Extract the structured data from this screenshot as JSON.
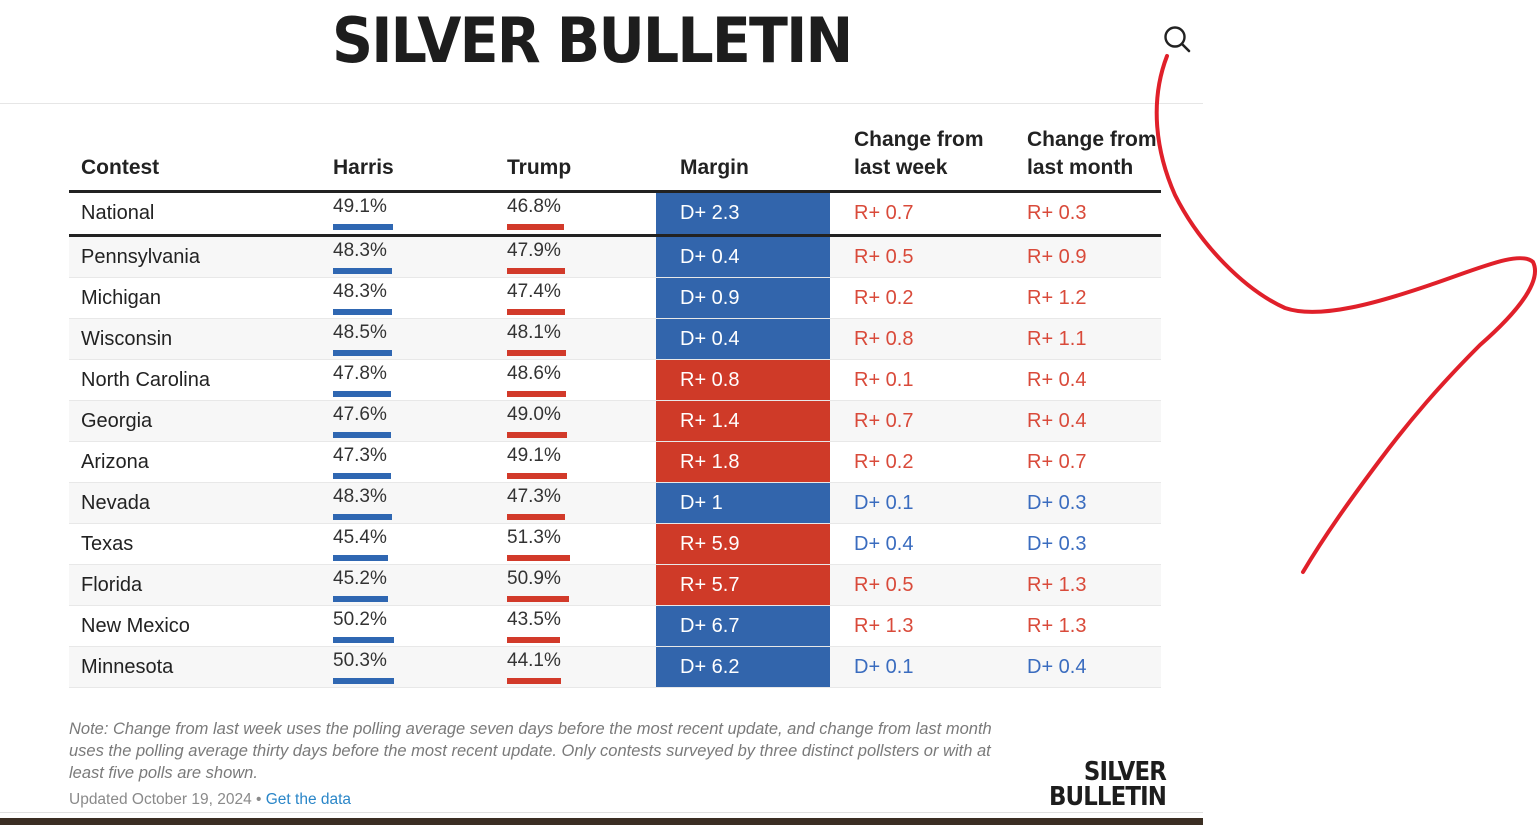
{
  "site": {
    "title": "SILVER BULLETIN"
  },
  "table": {
    "headers": {
      "contest": "Contest",
      "harris": "Harris",
      "trump": "Trump",
      "margin": "Margin",
      "week": "Change from last week",
      "month": "Change from last month"
    },
    "rows": [
      {
        "contest": "National",
        "harris": "49.1%",
        "trump": "46.8%",
        "harris_value": 49.1,
        "trump_value": 46.8,
        "margin": "D+ 2.3",
        "margin_party": "D",
        "week": "R+ 0.7",
        "week_party": "R",
        "month": "R+ 0.3",
        "month_party": "R"
      },
      {
        "contest": "Pennsylvania",
        "harris": "48.3%",
        "trump": "47.9%",
        "harris_value": 48.3,
        "trump_value": 47.9,
        "margin": "D+ 0.4",
        "margin_party": "D",
        "week": "R+ 0.5",
        "week_party": "R",
        "month": "R+ 0.9",
        "month_party": "R"
      },
      {
        "contest": "Michigan",
        "harris": "48.3%",
        "trump": "47.4%",
        "harris_value": 48.3,
        "trump_value": 47.4,
        "margin": "D+ 0.9",
        "margin_party": "D",
        "week": "R+ 0.2",
        "week_party": "R",
        "month": "R+ 1.2",
        "month_party": "R"
      },
      {
        "contest": "Wisconsin",
        "harris": "48.5%",
        "trump": "48.1%",
        "harris_value": 48.5,
        "trump_value": 48.1,
        "margin": "D+ 0.4",
        "margin_party": "D",
        "week": "R+ 0.8",
        "week_party": "R",
        "month": "R+ 1.1",
        "month_party": "R"
      },
      {
        "contest": "North Carolina",
        "harris": "47.8%",
        "trump": "48.6%",
        "harris_value": 47.8,
        "trump_value": 48.6,
        "margin": "R+ 0.8",
        "margin_party": "R",
        "week": "R+ 0.1",
        "week_party": "R",
        "month": "R+ 0.4",
        "month_party": "R"
      },
      {
        "contest": "Georgia",
        "harris": "47.6%",
        "trump": "49.0%",
        "harris_value": 47.6,
        "trump_value": 49.0,
        "margin": "R+ 1.4",
        "margin_party": "R",
        "week": "R+ 0.7",
        "week_party": "R",
        "month": "R+ 0.4",
        "month_party": "R"
      },
      {
        "contest": "Arizona",
        "harris": "47.3%",
        "trump": "49.1%",
        "harris_value": 47.3,
        "trump_value": 49.1,
        "margin": "R+ 1.8",
        "margin_party": "R",
        "week": "R+ 0.2",
        "week_party": "R",
        "month": "R+ 0.7",
        "month_party": "R"
      },
      {
        "contest": "Nevada",
        "harris": "48.3%",
        "trump": "47.3%",
        "harris_value": 48.3,
        "trump_value": 47.3,
        "margin": "D+ 1",
        "margin_party": "D",
        "week": "D+ 0.1",
        "week_party": "D",
        "month": "D+ 0.3",
        "month_party": "D"
      },
      {
        "contest": "Texas",
        "harris": "45.4%",
        "trump": "51.3%",
        "harris_value": 45.4,
        "trump_value": 51.3,
        "margin": "R+ 5.9",
        "margin_party": "R",
        "week": "D+ 0.4",
        "week_party": "D",
        "month": "D+ 0.3",
        "month_party": "D"
      },
      {
        "contest": "Florida",
        "harris": "45.2%",
        "trump": "50.9%",
        "harris_value": 45.2,
        "trump_value": 50.9,
        "margin": "R+ 5.7",
        "margin_party": "R",
        "week": "R+ 0.5",
        "week_party": "R",
        "month": "R+ 1.3",
        "month_party": "R"
      },
      {
        "contest": "New Mexico",
        "harris": "50.2%",
        "trump": "43.5%",
        "harris_value": 50.2,
        "trump_value": 43.5,
        "margin": "D+ 6.7",
        "margin_party": "D",
        "week": "R+ 1.3",
        "week_party": "R",
        "month": "R+ 1.3",
        "month_party": "R"
      },
      {
        "contest": "Minnesota",
        "harris": "50.3%",
        "trump": "44.1%",
        "harris_value": 50.3,
        "trump_value": 44.1,
        "margin": "D+ 6.2",
        "margin_party": "D",
        "week": "D+ 0.1",
        "week_party": "D",
        "month": "D+ 0.4",
        "month_party": "D"
      }
    ]
  },
  "footer": {
    "note": "Note: Change from last week uses the polling average seven days before the most recent update, and change from last month uses the polling average thirty days before the most recent update. Only contests surveyed by three distinct pollsters or with at least five polls are shown.",
    "updated": "Updated October 19, 2024 •",
    "get_data": "Get the data",
    "logo_line1": "SILVER",
    "logo_line2": "BULLETIN"
  },
  "colors": {
    "democrat": "#3265ac",
    "republican": "#cf3a28",
    "annotation": "#e0202a"
  },
  "icons": {
    "search": "search-icon"
  }
}
